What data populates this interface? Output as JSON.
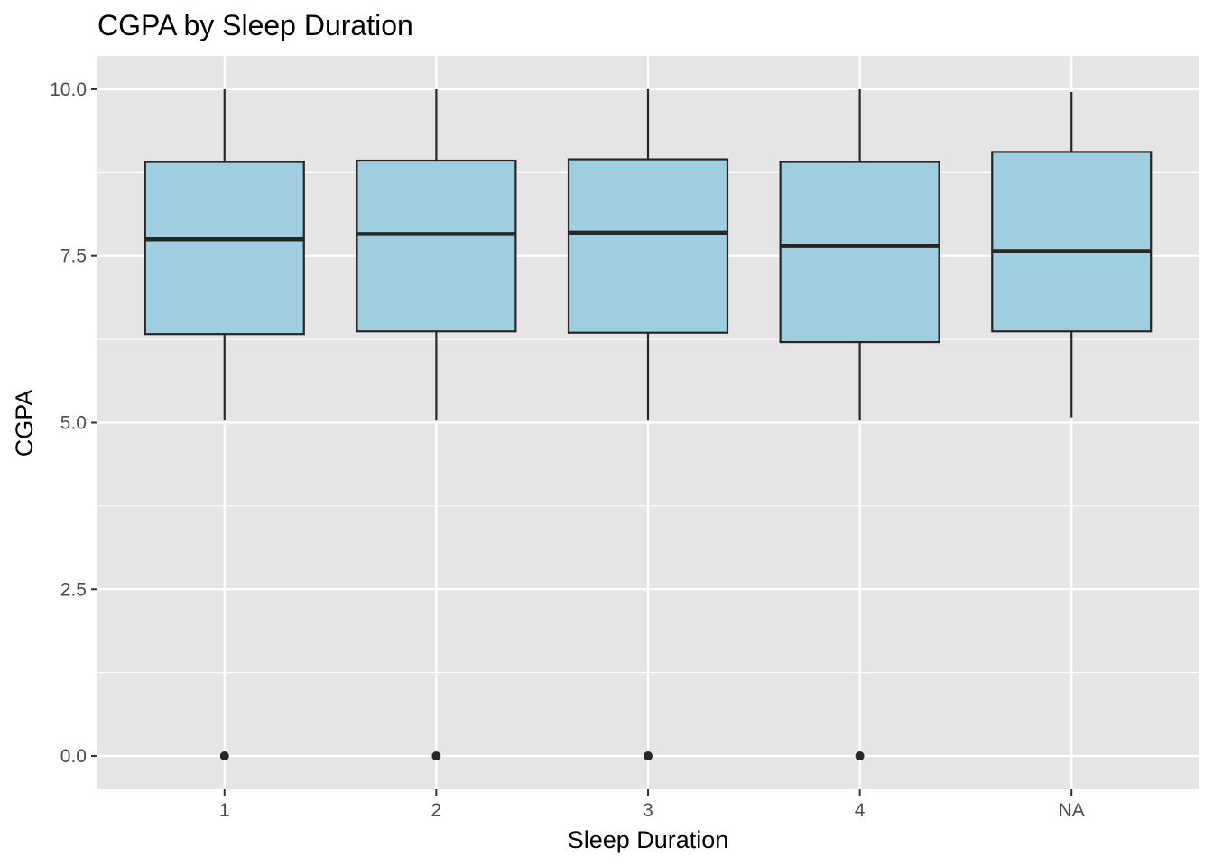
{
  "chart_data": {
    "type": "boxplot",
    "title": "CGPA by Sleep Duration",
    "xlabel": "Sleep Duration",
    "ylabel": "CGPA",
    "categories": [
      "1",
      "2",
      "3",
      "4",
      "NA"
    ],
    "ylim": [
      -0.5,
      10.5
    ],
    "yticks": [
      0,
      2.5,
      5,
      7.5,
      10
    ],
    "ytick_labels": [
      "0.0",
      "2.5",
      "5.0",
      "7.5",
      "10.0"
    ],
    "grid": true,
    "legend": "none",
    "boxes": [
      {
        "category": "1",
        "lower_whisker": 5.03,
        "q1": 6.33,
        "median": 7.75,
        "q3": 8.91,
        "upper_whisker": 10.0,
        "outliers": [
          0
        ]
      },
      {
        "category": "2",
        "lower_whisker": 5.03,
        "q1": 6.37,
        "median": 7.83,
        "q3": 8.93,
        "upper_whisker": 10.0,
        "outliers": [
          0
        ]
      },
      {
        "category": "3",
        "lower_whisker": 5.03,
        "q1": 6.35,
        "median": 7.85,
        "q3": 8.95,
        "upper_whisker": 10.0,
        "outliers": [
          0
        ]
      },
      {
        "category": "4",
        "lower_whisker": 5.03,
        "q1": 6.21,
        "median": 7.65,
        "q3": 8.91,
        "upper_whisker": 10.0,
        "outliers": [
          0
        ]
      },
      {
        "category": "NA",
        "lower_whisker": 5.08,
        "q1": 6.37,
        "median": 7.57,
        "q3": 9.06,
        "upper_whisker": 9.96,
        "outliers": []
      }
    ],
    "colors": {
      "box_fill": "#9fcee0",
      "box_line": "#262626",
      "panel": "#e5e5e5",
      "grid": "#ffffff",
      "tick_text": "#4d4d4d"
    }
  }
}
